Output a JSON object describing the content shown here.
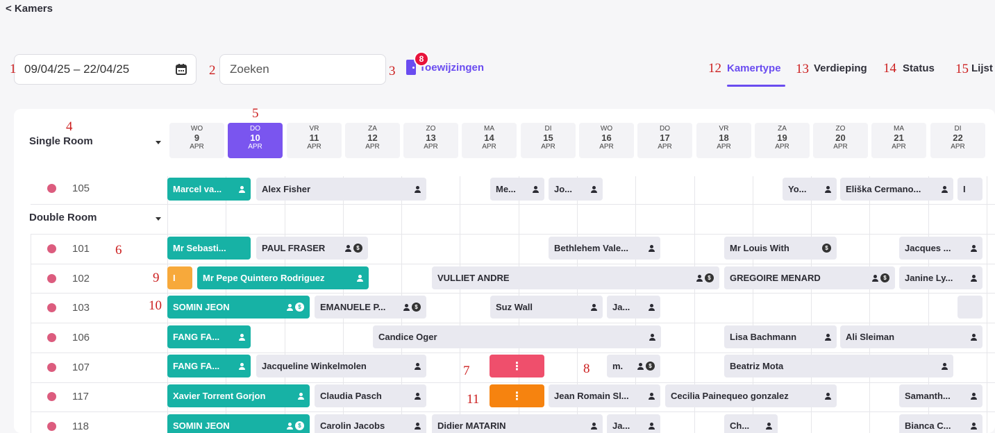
{
  "nav": {
    "back": "< Kamers"
  },
  "toolbar": {
    "date_range": "09/04/25 – 22/04/25",
    "search_placeholder": "Zoeken",
    "assignments_label": "Toewijzingen",
    "assignments_count": "8"
  },
  "annotations": [
    "1",
    "2",
    "3",
    "4",
    "5",
    "6",
    "7",
    "8",
    "9",
    "10",
    "11",
    "12",
    "13",
    "14",
    "15"
  ],
  "view_tabs": [
    {
      "label": "Kamertype",
      "active": true
    },
    {
      "label": "Verdieping",
      "active": false
    },
    {
      "label": "Status",
      "active": false
    },
    {
      "label": "Lijst",
      "active": false
    }
  ],
  "groups": {
    "single": "Single Room",
    "double": "Double Room"
  },
  "days": [
    {
      "dow": "WO",
      "num": "9",
      "mon": "APR",
      "today": false
    },
    {
      "dow": "DO",
      "num": "10",
      "mon": "APR",
      "today": true
    },
    {
      "dow": "VR",
      "num": "11",
      "mon": "APR",
      "today": false
    },
    {
      "dow": "ZA",
      "num": "12",
      "mon": "APR",
      "today": false
    },
    {
      "dow": "ZO",
      "num": "13",
      "mon": "APR",
      "today": false
    },
    {
      "dow": "MA",
      "num": "14",
      "mon": "APR",
      "today": false
    },
    {
      "dow": "DI",
      "num": "15",
      "mon": "APR",
      "today": false
    },
    {
      "dow": "WO",
      "num": "16",
      "mon": "APR",
      "today": false
    },
    {
      "dow": "DO",
      "num": "17",
      "mon": "APR",
      "today": false
    },
    {
      "dow": "VR",
      "num": "18",
      "mon": "APR",
      "today": false
    },
    {
      "dow": "ZA",
      "num": "19",
      "mon": "APR",
      "today": false
    },
    {
      "dow": "ZO",
      "num": "20",
      "mon": "APR",
      "today": false
    },
    {
      "dow": "MA",
      "num": "21",
      "mon": "APR",
      "today": false
    },
    {
      "dow": "DI",
      "num": "22",
      "mon": "APR",
      "today": false
    }
  ],
  "rooms": [
    {
      "number": "105",
      "status_color": "#dc5c7e"
    },
    {
      "number": "101",
      "status_color": "#dc5c7e"
    },
    {
      "number": "102",
      "status_color": "#dc5c7e"
    },
    {
      "number": "103",
      "status_color": "#dc5c7e"
    },
    {
      "number": "106",
      "status_color": "#dc5c7e"
    },
    {
      "number": "107",
      "status_color": "#dc5c7e"
    },
    {
      "number": "117",
      "status_color": "#dc5c7e"
    },
    {
      "number": "118",
      "status_color": "#dc5c7e"
    }
  ],
  "bookings": [
    {
      "name": "Marcel va...",
      "style": "teal"
    },
    {
      "name": "Alex Fisher",
      "style": "gray"
    },
    {
      "name": "Me...",
      "style": "gray"
    },
    {
      "name": "Jo...",
      "style": "gray"
    },
    {
      "name": "Yo...",
      "style": "gray"
    },
    {
      "name": "Eliška Cermano...",
      "style": "gray"
    },
    {
      "name": "I",
      "style": "gray"
    },
    {
      "name": "Mr Sebasti...",
      "style": "teal"
    },
    {
      "name": "PAUL FRASER",
      "style": "gray"
    },
    {
      "name": "Bethlehem Vale...",
      "style": "gray"
    },
    {
      "name": "Mr Louis With",
      "style": "gray"
    },
    {
      "name": "Jacques ...",
      "style": "gray"
    },
    {
      "name": "I",
      "style": "orange-sm"
    },
    {
      "name": "Mr Pepe Quintero Rodriguez",
      "style": "teal"
    },
    {
      "name": "VULLIET ANDRE",
      "style": "gray"
    },
    {
      "name": "GREGOIRE MENARD",
      "style": "gray"
    },
    {
      "name": "Janine Ly...",
      "style": "gray"
    },
    {
      "name": "SOMIN JEON",
      "style": "teal"
    },
    {
      "name": "EMANUELE P...",
      "style": "gray"
    },
    {
      "name": "Suz Wall",
      "style": "gray"
    },
    {
      "name": "Ja...",
      "style": "gray"
    },
    {
      "name": "FANG FA...",
      "style": "teal"
    },
    {
      "name": "Candice Oger",
      "style": "gray"
    },
    {
      "name": "Lisa Bachmann",
      "style": "gray"
    },
    {
      "name": "Ali Sleiman",
      "style": "gray"
    },
    {
      "name": "FANG FA...",
      "style": "teal"
    },
    {
      "name": "Jacqueline Winkelmolen",
      "style": "gray"
    },
    {
      "name": "m.",
      "style": "gray"
    },
    {
      "name": "Beatriz Mota",
      "style": "gray"
    },
    {
      "name": "Xavier Torrent Gorjon",
      "style": "teal"
    },
    {
      "name": "Claudia Pasch",
      "style": "gray"
    },
    {
      "name": "Jean Romain Sl...",
      "style": "gray"
    },
    {
      "name": "Cecilia Painequeo gonzalez",
      "style": "gray"
    },
    {
      "name": "Samanth...",
      "style": "gray"
    },
    {
      "name": "SOMIN JEON",
      "style": "teal"
    },
    {
      "name": "Carolin Jacobs",
      "style": "gray"
    },
    {
      "name": "Didier MATARIN",
      "style": "gray"
    },
    {
      "name": "Ja...",
      "style": "gray"
    },
    {
      "name": "Ch...",
      "style": "gray"
    },
    {
      "name": "Bianca C...",
      "style": "gray"
    }
  ],
  "colors": {
    "accent": "#6a4cf0",
    "booking_teal": "#17b2a5",
    "booking_gray": "#e9e9f0",
    "alert_pink": "#ef4f6c",
    "alert_orange": "#f6830f",
    "room_dot": "#dc5c7e"
  }
}
